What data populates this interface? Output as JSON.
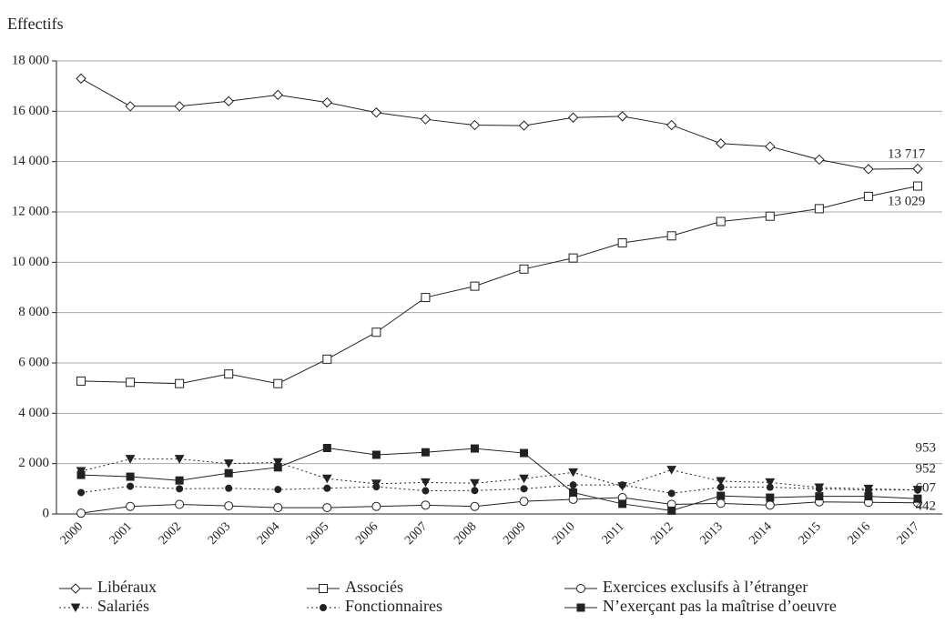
{
  "chart_data": {
    "type": "line",
    "title": "Effectifs",
    "categories": [
      "2000",
      "2001",
      "2002",
      "2003",
      "2004",
      "2005",
      "2006",
      "2007",
      "2008",
      "2009",
      "2010",
      "2011",
      "2012",
      "2013",
      "2014",
      "2015",
      "2016",
      "2017"
    ],
    "ylim": [
      0,
      18000
    ],
    "yticks": [
      0,
      {
        "value": 2000,
        "label": "2 000"
      },
      {
        "value": 4000,
        "label": "4 000"
      },
      {
        "value": 6000,
        "label": "6 000"
      },
      {
        "value": 8000,
        "label": "8 000"
      },
      {
        "value": 10000,
        "label": "10 000"
      },
      {
        "value": 12000,
        "label": "12 000"
      },
      {
        "value": 14000,
        "label": "14 000"
      },
      {
        "value": 16000,
        "label": "16 000"
      },
      {
        "value": 18000,
        "label": "18 000"
      }
    ],
    "grid": true,
    "series": [
      {
        "name": "Libéraux",
        "color": "#222",
        "marker": "diamond",
        "dash": false,
        "values": [
          17300,
          16200,
          16200,
          16400,
          16650,
          16350,
          15950,
          15680,
          15450,
          15430,
          15750,
          15800,
          15450,
          14720,
          14600,
          14080,
          13700,
          13717
        ],
        "value_labels": [
          null,
          null,
          null,
          null,
          null,
          null,
          null,
          null,
          null,
          null,
          null,
          null,
          null,
          null,
          null,
          null,
          null,
          "13 717"
        ]
      },
      {
        "name": "Associés",
        "color": "#222",
        "marker": "square",
        "dash": false,
        "values": [
          5280,
          5230,
          5180,
          5560,
          5180,
          6150,
          7220,
          8600,
          9050,
          9730,
          10170,
          10770,
          11050,
          11620,
          11830,
          12130,
          12620,
          13029
        ],
        "value_labels": [
          null,
          null,
          null,
          null,
          null,
          null,
          null,
          null,
          null,
          null,
          null,
          null,
          null,
          null,
          null,
          null,
          null,
          "13 029"
        ]
      },
      {
        "name": "Exercices exclusifs à l’étranger",
        "color": "#222",
        "marker": "circle",
        "dash": false,
        "values": [
          30,
          300,
          380,
          320,
          250,
          250,
          300,
          350,
          300,
          500,
          580,
          650,
          380,
          420,
          350,
          480,
          460,
          442
        ],
        "value_labels": [
          null,
          null,
          null,
          null,
          null,
          null,
          null,
          null,
          null,
          null,
          null,
          null,
          null,
          null,
          null,
          null,
          null,
          "442"
        ]
      },
      {
        "name": "Salariés",
        "color": "#222",
        "marker": "triangle",
        "dash": true,
        "values": [
          1700,
          2180,
          2180,
          2000,
          2050,
          1400,
          1200,
          1250,
          1220,
          1400,
          1650,
          1100,
          1750,
          1300,
          1250,
          1050,
          1000,
          952
        ],
        "value_labels": [
          null,
          null,
          null,
          null,
          null,
          null,
          null,
          null,
          null,
          null,
          null,
          null,
          null,
          null,
          null,
          null,
          null,
          "952"
        ]
      },
      {
        "name": "Fonctionnaires",
        "color": "#222",
        "marker": "dot",
        "dash": true,
        "values": [
          850,
          1100,
          1000,
          1020,
          970,
          1020,
          1080,
          920,
          930,
          1000,
          1150,
          1150,
          820,
          1060,
          1060,
          1000,
          950,
          953
        ],
        "value_labels": [
          null,
          null,
          null,
          null,
          null,
          null,
          null,
          null,
          null,
          null,
          null,
          null,
          null,
          null,
          null,
          null,
          null,
          "953"
        ]
      },
      {
        "name": "N’exerçant pas la maîtrise d’oeuvre",
        "color": "#222",
        "marker": "filled-square",
        "dash": false,
        "values": [
          1550,
          1480,
          1330,
          1620,
          1850,
          2620,
          2350,
          2450,
          2600,
          2420,
          850,
          400,
          130,
          720,
          650,
          700,
          700,
          607
        ],
        "value_labels": [
          null,
          null,
          null,
          null,
          null,
          null,
          null,
          null,
          null,
          null,
          null,
          null,
          null,
          null,
          null,
          null,
          null,
          "607"
        ]
      }
    ]
  }
}
